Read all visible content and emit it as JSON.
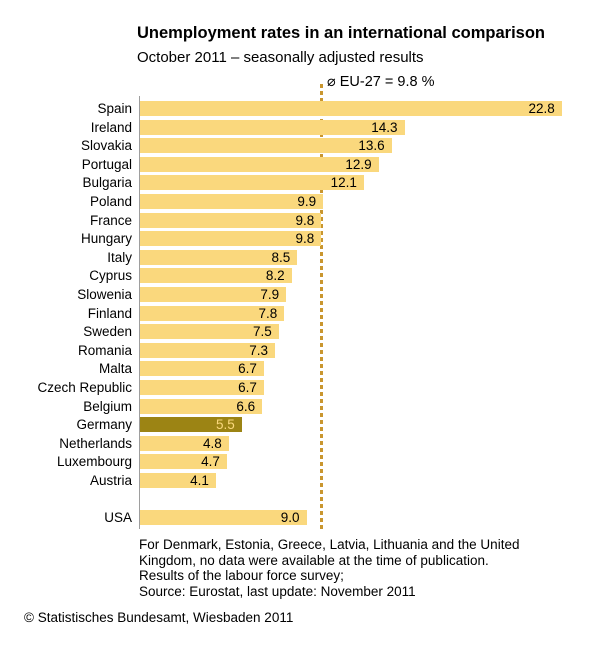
{
  "title": "Unemployment rates in an international comparison",
  "subtitle": "October 2011 – seasonally adjusted results",
  "chart_data": {
    "type": "bar",
    "orientation": "horizontal",
    "title": "Unemployment rates in an international comparison",
    "subtitle": "October 2011 – seasonally adjusted results",
    "unit": "%",
    "xlim": [
      0,
      24
    ],
    "grid": false,
    "value_labels": "inside-end",
    "categories": [
      "Spain",
      "Ireland",
      "Slovakia",
      "Portugal",
      "Bulgaria",
      "Poland",
      "France",
      "Hungary",
      "Italy",
      "Cyprus",
      "Slowenia",
      "Finland",
      "Sweden",
      "Romania",
      "Malta",
      "Czech Republic",
      "Belgium",
      "Germany",
      "Netherlands",
      "Luxembourg",
      "Austria",
      "USA"
    ],
    "values": [
      22.8,
      14.3,
      13.6,
      12.9,
      12.1,
      9.9,
      9.8,
      9.8,
      8.5,
      8.2,
      7.9,
      7.8,
      7.5,
      7.3,
      6.7,
      6.7,
      6.6,
      5.5,
      4.8,
      4.7,
      4.1,
      9.0
    ],
    "highlight_category": "Germany",
    "detached_category": "USA",
    "reference_line": {
      "label": "⌀ EU-27 = 9.8 %",
      "value": 9.8
    }
  },
  "footnotes": [
    "For Denmark, Estonia, Greece, Latvia, Lithuania and the United",
    "Kingdom, no data were available at the time of publication.",
    "Results of the labour force survey;",
    "Source: Eurostat, last update: November 2011"
  ],
  "copyright": "© Statistisches Bundesamt, Wiesbaden 2011",
  "colors": {
    "bar": "#FAD87D",
    "highlight_bar": "#9C8414",
    "highlight_value_text": "#FAD87D",
    "reference_line": "#C9962F",
    "axis": "#9E9E9E",
    "text": "#000000"
  }
}
